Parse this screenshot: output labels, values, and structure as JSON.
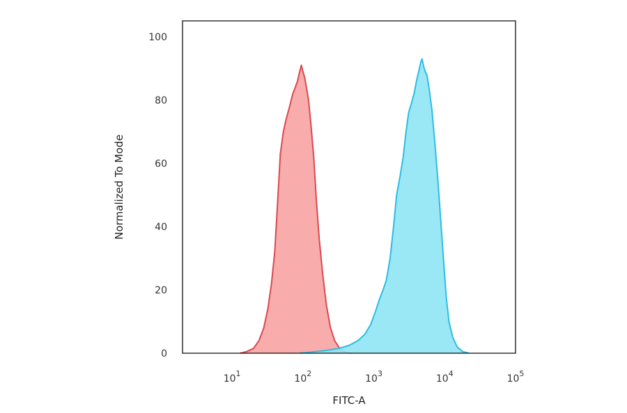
{
  "chart_data": {
    "type": "area",
    "title": "",
    "xlabel": "FITC-A",
    "ylabel": "Normalized To Mode",
    "x_scale": "log",
    "xlim": [
      2,
      100000
    ],
    "ylim": [
      0,
      105
    ],
    "x_ticks": [
      {
        "value": 10,
        "base": "10",
        "exp": "1"
      },
      {
        "value": 100,
        "base": "10",
        "exp": "2"
      },
      {
        "value": 1000,
        "base": "10",
        "exp": "3"
      },
      {
        "value": 10000,
        "base": "10",
        "exp": "4"
      },
      {
        "value": 100000,
        "base": "10",
        "exp": "5"
      }
    ],
    "y_ticks": [
      {
        "value": 0,
        "label": "0"
      },
      {
        "value": 20,
        "label": "20"
      },
      {
        "value": 40,
        "label": "40"
      },
      {
        "value": 60,
        "label": "60"
      },
      {
        "value": 80,
        "label": "80"
      },
      {
        "value": 100,
        "label": "100"
      }
    ],
    "grid": false,
    "legend": "none",
    "series": [
      {
        "fill": "#f8a3a3",
        "stroke": "#d9484f",
        "points": [
          [
            13,
            0
          ],
          [
            16,
            0.5
          ],
          [
            20,
            1.5
          ],
          [
            24,
            4
          ],
          [
            28,
            8
          ],
          [
            32,
            14
          ],
          [
            36,
            22
          ],
          [
            40,
            32
          ],
          [
            44,
            48
          ],
          [
            48,
            63
          ],
          [
            53,
            70
          ],
          [
            58,
            74
          ],
          [
            65,
            78
          ],
          [
            72,
            82
          ],
          [
            78,
            84
          ],
          [
            84,
            86
          ],
          [
            90,
            89
          ],
          [
            95,
            91
          ],
          [
            100,
            89
          ],
          [
            106,
            87
          ],
          [
            112,
            84
          ],
          [
            120,
            80
          ],
          [
            130,
            72
          ],
          [
            142,
            62
          ],
          [
            155,
            48
          ],
          [
            170,
            36
          ],
          [
            190,
            25
          ],
          [
            215,
            15
          ],
          [
            245,
            8
          ],
          [
            280,
            4
          ],
          [
            330,
            1.5
          ],
          [
            400,
            0.3
          ],
          [
            480,
            0
          ]
        ]
      },
      {
        "fill": "#8fe4f5",
        "stroke": "#2cbde0",
        "points": [
          [
            90,
            0
          ],
          [
            200,
            0.8
          ],
          [
            320,
            1.5
          ],
          [
            450,
            2.5
          ],
          [
            600,
            4
          ],
          [
            750,
            6
          ],
          [
            900,
            9
          ],
          [
            1050,
            13
          ],
          [
            1200,
            17
          ],
          [
            1350,
            20
          ],
          [
            1500,
            23
          ],
          [
            1700,
            30
          ],
          [
            1900,
            40
          ],
          [
            2100,
            50
          ],
          [
            2350,
            56
          ],
          [
            2600,
            62
          ],
          [
            2850,
            70
          ],
          [
            3100,
            76
          ],
          [
            3400,
            79
          ],
          [
            3700,
            82
          ],
          [
            4000,
            86
          ],
          [
            4300,
            89
          ],
          [
            4600,
            92
          ],
          [
            4800,
            93
          ],
          [
            5000,
            91
          ],
          [
            5300,
            89
          ],
          [
            5600,
            88
          ],
          [
            6000,
            84
          ],
          [
            6600,
            77
          ],
          [
            7300,
            66
          ],
          [
            8000,
            55
          ],
          [
            8800,
            42
          ],
          [
            9600,
            30
          ],
          [
            10500,
            18
          ],
          [
            11500,
            10
          ],
          [
            13000,
            5
          ],
          [
            15000,
            2
          ],
          [
            18000,
            0.5
          ],
          [
            22000,
            0
          ]
        ]
      }
    ]
  }
}
